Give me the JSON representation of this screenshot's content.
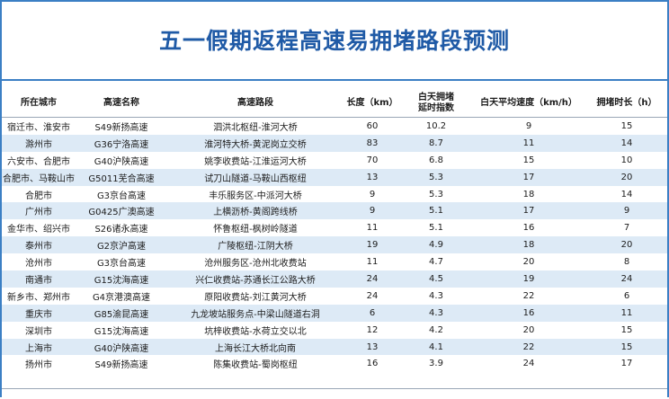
{
  "title": "五一假期返程高速易拥堵路段预测",
  "columns": [
    "所在城市",
    "高速名称",
    "高速路段",
    "长度（km）",
    "白天拥堵\n延时指数",
    "白天平均速度（km/h）",
    "拥堵时长（h）"
  ],
  "rows": [
    [
      "宿迁市、淮安市",
      "S49新扬高速",
      "泗洪北枢纽-淮河大桥",
      "60",
      "10.2",
      "9",
      "15"
    ],
    [
      "滁州市",
      "G36宁洛高速",
      "淮河特大桥-黄泥岗立交桥",
      "83",
      "8.7",
      "11",
      "14"
    ],
    [
      "六安市、合肥市",
      "G40沪陕高速",
      "姚李收费站-江淮运河大桥",
      "70",
      "6.8",
      "15",
      "10"
    ],
    [
      "合肥市、马鞍山市",
      "G5011芜合高速",
      "试刀山隧道-马鞍山西枢纽",
      "13",
      "5.3",
      "17",
      "20"
    ],
    [
      "合肥市",
      "G3京台高速",
      "丰乐服务区-中派河大桥",
      "9",
      "5.3",
      "18",
      "14"
    ],
    [
      "广州市",
      "G0425广澳高速",
      "上横沥桥-黄阁跨线桥",
      "9",
      "5.1",
      "17",
      "9"
    ],
    [
      "金华市、绍兴市",
      "S26诸永高速",
      "怀鲁枢纽-枫树岭隧道",
      "11",
      "5.1",
      "16",
      "7"
    ],
    [
      "泰州市",
      "G2京沪高速",
      "广陵枢纽-江阴大桥",
      "19",
      "4.9",
      "18",
      "20"
    ],
    [
      "沧州市",
      "G3京台高速",
      "沧州服务区-沧州北收费站",
      "11",
      "4.7",
      "20",
      "8"
    ],
    [
      "南通市",
      "G15沈海高速",
      "兴仁收费站-苏通长江公路大桥",
      "24",
      "4.5",
      "19",
      "24"
    ],
    [
      "新乡市、郑州市",
      "G4京港澳高速",
      "原阳收费站-刘江黄河大桥",
      "24",
      "4.3",
      "22",
      "6"
    ],
    [
      "重庆市",
      "G85渝昆高速",
      "九龙坡站服务点-中梁山隧道右洞",
      "6",
      "4.3",
      "16",
      "11"
    ],
    [
      "深圳市",
      "G15沈海高速",
      "坑梓收费站-水荷立交以北",
      "12",
      "4.2",
      "20",
      "15"
    ],
    [
      "上海市",
      "G40沪陕高速",
      "上海长江大桥北向南",
      "13",
      "4.1",
      "22",
      "15"
    ],
    [
      "扬州市",
      "S49新扬高速",
      "陈集收费站-蜀岗枢纽",
      "16",
      "3.9",
      "24",
      "17"
    ]
  ],
  "colors": {
    "title": "#1f5aa6",
    "frame": "#3b7fc4",
    "stripe": "#ddeaf6"
  }
}
